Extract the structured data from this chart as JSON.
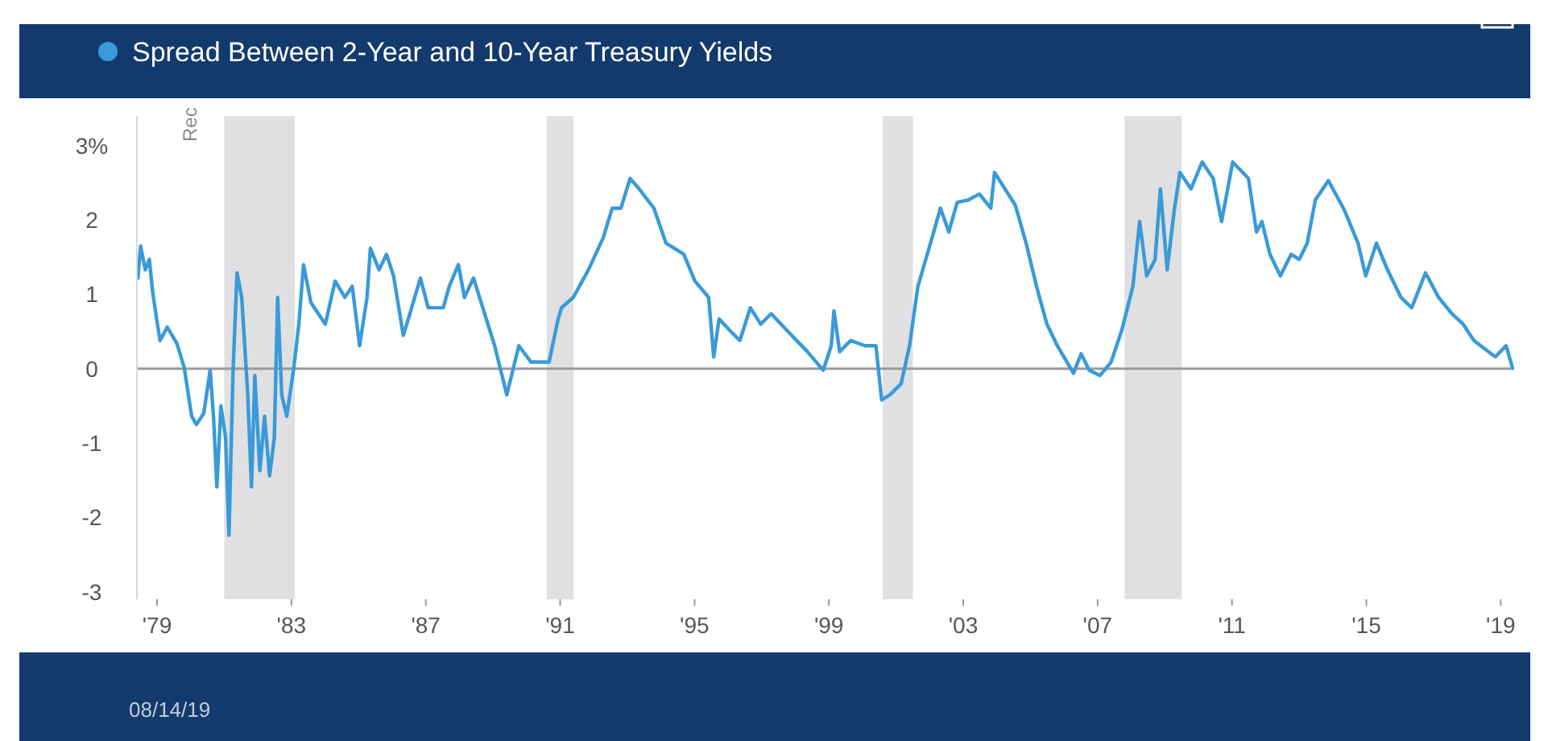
{
  "chart_data": {
    "type": "line",
    "x": [
      1978.43,
      1978.51,
      1978.65,
      1978.77,
      1978.87,
      1979.01,
      1979.09,
      1979.3,
      1979.59,
      1979.81,
      1980.03,
      1980.17,
      1980.39,
      1980.58,
      1980.68,
      1980.78,
      1980.9,
      1981.04,
      1981.14,
      1981.26,
      1981.38,
      1981.52,
      1981.7,
      1981.81,
      1981.91,
      1982.06,
      1982.2,
      1982.35,
      1982.49,
      1982.59,
      1982.71,
      1982.86,
      1983.07,
      1983.22,
      1983.36,
      1983.58,
      1983.8,
      1984.01,
      1984.3,
      1984.59,
      1984.81,
      1985.03,
      1985.25,
      1985.35,
      1985.61,
      1985.83,
      1986.04,
      1986.33,
      1986.48,
      1986.84,
      1987.07,
      1987.52,
      1987.7,
      1987.97,
      1988.15,
      1988.42,
      1988.6,
      1989.05,
      1989.41,
      1989.77,
      1990.13,
      1990.67,
      1990.94,
      1991.04,
      1991.39,
      1991.84,
      1992.28,
      1992.55,
      1992.81,
      1993.08,
      1993.35,
      1993.79,
      1994.15,
      1994.68,
      1995.01,
      1995.42,
      1995.57,
      1995.73,
      1996.04,
      1996.35,
      1996.66,
      1996.97,
      1997.28,
      1997.74,
      1998.36,
      1998.83,
      1999.07,
      1999.15,
      1999.32,
      1999.65,
      2000.07,
      2000.4,
      2000.57,
      2000.82,
      2001.15,
      2001.4,
      2001.65,
      2002.07,
      2002.32,
      2002.57,
      2002.82,
      2003.15,
      2003.48,
      2003.82,
      2003.93,
      2004.24,
      2004.55,
      2004.87,
      2005.18,
      2005.49,
      2005.8,
      2006.28,
      2006.51,
      2006.75,
      2007.07,
      2007.4,
      2007.72,
      2008.05,
      2008.25,
      2008.46,
      2008.71,
      2008.87,
      2009.07,
      2009.28,
      2009.45,
      2009.78,
      2010.11,
      2010.44,
      2010.69,
      2011.02,
      2011.49,
      2011.73,
      2011.89,
      2012.13,
      2012.44,
      2012.76,
      2013.0,
      2013.24,
      2013.48,
      2013.87,
      2014.35,
      2014.75,
      2014.98,
      2015.3,
      2015.63,
      2016.03,
      2016.35,
      2016.76,
      2017.15,
      2017.55,
      2017.88,
      2018.2,
      2018.52,
      2018.84,
      2019.16,
      2019.35
    ],
    "series": [
      {
        "name": "Spread Between 2-Year and 10-Year Treasury Yields",
        "color": "#3a9ad9",
        "values": [
          1.22,
          1.65,
          1.33,
          1.47,
          1.03,
          0.6,
          0.38,
          0.56,
          0.34,
          0.01,
          -0.64,
          -0.75,
          -0.6,
          -0.02,
          -0.64,
          -1.59,
          -0.5,
          -0.93,
          -2.24,
          -0.06,
          1.29,
          0.96,
          -0.35,
          -1.59,
          -0.09,
          -1.37,
          -0.64,
          -1.44,
          -0.93,
          0.96,
          -0.35,
          -0.64,
          0.01,
          0.6,
          1.4,
          0.89,
          0.74,
          0.6,
          1.18,
          0.96,
          1.11,
          0.31,
          0.96,
          1.62,
          1.33,
          1.54,
          1.25,
          0.45,
          0.67,
          1.22,
          0.82,
          0.82,
          1.11,
          1.4,
          0.96,
          1.22,
          0.96,
          0.31,
          -0.35,
          0.31,
          0.09,
          0.09,
          0.67,
          0.82,
          0.96,
          1.33,
          1.76,
          2.16,
          2.16,
          2.56,
          2.42,
          2.16,
          1.69,
          1.54,
          1.18,
          0.96,
          0.16,
          0.67,
          0.52,
          0.38,
          0.82,
          0.6,
          0.74,
          0.52,
          0.23,
          -0.02,
          0.31,
          0.78,
          0.23,
          0.38,
          0.31,
          0.31,
          -0.42,
          -0.35,
          -0.2,
          0.31,
          1.11,
          1.76,
          2.16,
          1.84,
          2.24,
          2.27,
          2.35,
          2.16,
          2.64,
          2.42,
          2.2,
          1.69,
          1.11,
          0.6,
          0.31,
          -0.06,
          0.2,
          -0.02,
          -0.09,
          0.09,
          0.52,
          1.11,
          1.98,
          1.25,
          1.47,
          2.42,
          1.33,
          2.13,
          2.64,
          2.42,
          2.78,
          2.56,
          1.98,
          2.78,
          2.56,
          1.84,
          1.98,
          1.54,
          1.25,
          1.54,
          1.47,
          1.69,
          2.27,
          2.53,
          2.13,
          1.69,
          1.25,
          1.69,
          1.33,
          0.96,
          0.82,
          1.29,
          0.96,
          0.74,
          0.6,
          0.38,
          0.27,
          0.16,
          0.31,
          0.01
        ]
      }
    ],
    "xlim": [
      1978.4,
      2019.4
    ],
    "xticks": [
      {
        "value": 1979,
        "label": "'79"
      },
      {
        "value": 1983,
        "label": "'83"
      },
      {
        "value": 1987,
        "label": "'87"
      },
      {
        "value": 1991,
        "label": "'91"
      },
      {
        "value": 1995,
        "label": "'95"
      },
      {
        "value": 1999,
        "label": "'99"
      },
      {
        "value": 2003,
        "label": "'03"
      },
      {
        "value": 2007,
        "label": "'07"
      },
      {
        "value": 2011,
        "label": "'11"
      },
      {
        "value": 2015,
        "label": "'15"
      },
      {
        "value": 2019,
        "label": "'19"
      }
    ],
    "ylim": [
      -3.1,
      3.4
    ],
    "yticks": [
      {
        "value": 3,
        "label": "3%"
      },
      2,
      1,
      0,
      -1,
      -2,
      -3
    ],
    "ref_lines": [
      {
        "axis": "y",
        "value": 0,
        "color": "#9a9a9a"
      }
    ],
    "bands": [
      {
        "axis": "x",
        "from": 1981.0,
        "to": 1983.1,
        "label": "Rec",
        "color": "#e0e0e2"
      },
      {
        "axis": "x",
        "from": 1990.6,
        "to": 1991.4,
        "color": "#e0e0e2"
      },
      {
        "axis": "x",
        "from": 2000.6,
        "to": 2001.5,
        "color": "#e0e0e2"
      },
      {
        "axis": "x",
        "from": 2007.8,
        "to": 2009.5,
        "color": "#e0e0e2"
      }
    ],
    "legend": "top",
    "grid": false,
    "annotations": [
      "08/14/19"
    ]
  }
}
